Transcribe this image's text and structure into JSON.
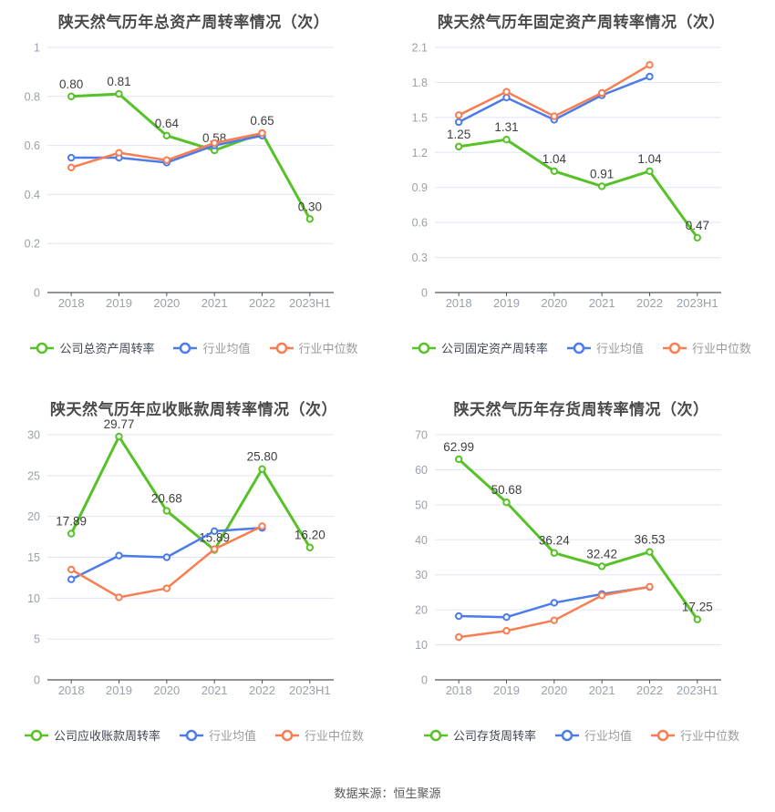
{
  "page": {
    "source_note": "数据来源：恒生聚源",
    "background": "#ffffff"
  },
  "style": {
    "grid_color": "#e0e5f2",
    "axis_color": "#555555",
    "tick_label_color": "#9aa1a9",
    "value_label_color": "#3f3f3f",
    "title_color": "#4a4a4a"
  },
  "chart_data": [
    {
      "type": "line",
      "title": "陕天然气历年总资产周转率情况（次）",
      "categories": [
        "2018",
        "2019",
        "2020",
        "2021",
        "2022",
        "2023H1"
      ],
      "ymax": 1,
      "ytick_labels": [
        "1",
        "0.8",
        "0.6",
        "0.4",
        "0.2",
        "0"
      ],
      "legend_position": "bottom",
      "grid": true,
      "series": [
        {
          "name": "公司总资产周转率",
          "color": "#56c228",
          "values": [
            0.8,
            0.81,
            0.64,
            0.58,
            0.65,
            0.3
          ],
          "point_labels": [
            "0.80",
            "0.81",
            "0.64",
            "0.58",
            "0.65",
            "0.30"
          ]
        },
        {
          "name": "行业均值",
          "color": "#4c7cea",
          "values": [
            0.55,
            0.55,
            0.53,
            0.6,
            0.64
          ]
        },
        {
          "name": "行业中位数",
          "color": "#fa7d50",
          "values": [
            0.51,
            0.57,
            0.54,
            0.61,
            0.65
          ]
        }
      ]
    },
    {
      "type": "line",
      "title": "陕天然气历年固定资产周转率情况（次）",
      "categories": [
        "2018",
        "2019",
        "2020",
        "2021",
        "2022",
        "2023H1"
      ],
      "ymax": 2.1,
      "ytick_labels": [
        "2.1",
        "1.8",
        "1.5",
        "1.2",
        "0.9",
        "0.6",
        "0.3",
        "0"
      ],
      "legend_position": "bottom",
      "grid": true,
      "series": [
        {
          "name": "公司固定资产周转率",
          "color": "#56c228",
          "values": [
            1.25,
            1.31,
            1.04,
            0.91,
            1.04,
            0.47
          ],
          "point_labels": [
            "1.25",
            "1.31",
            "1.04",
            "0.91",
            "1.04",
            "0.47"
          ]
        },
        {
          "name": "行业均值",
          "color": "#4c7cea",
          "values": [
            1.46,
            1.67,
            1.48,
            1.69,
            1.85
          ]
        },
        {
          "name": "行业中位数",
          "color": "#fa7d50",
          "values": [
            1.52,
            1.72,
            1.51,
            1.71,
            1.95
          ]
        }
      ]
    },
    {
      "type": "line",
      "title": "陕天然气历年应收账款周转率情况（次）",
      "categories": [
        "2018",
        "2019",
        "2020",
        "2021",
        "2022",
        "2023H1"
      ],
      "ymax": 30,
      "ytick_labels": [
        "30",
        "25",
        "20",
        "15",
        "10",
        "5",
        "0"
      ],
      "legend_position": "bottom",
      "grid": true,
      "series": [
        {
          "name": "公司应收账款周转率",
          "color": "#56c228",
          "values": [
            17.89,
            29.77,
            20.68,
            15.89,
            25.8,
            16.2
          ],
          "point_labels": [
            "17.89",
            "29.77",
            "20.68",
            "15.89",
            "25.80",
            "16.20"
          ]
        },
        {
          "name": "行业均值",
          "color": "#4c7cea",
          "values": [
            12.3,
            15.2,
            15.0,
            18.2,
            18.6
          ]
        },
        {
          "name": "行业中位数",
          "color": "#fa7d50",
          "values": [
            13.5,
            10.1,
            11.2,
            16.0,
            18.8
          ]
        }
      ]
    },
    {
      "type": "line",
      "title": "陕天然气历年存货周转率情况（次）",
      "categories": [
        "2018",
        "2019",
        "2020",
        "2021",
        "2022",
        "2023H1"
      ],
      "ymax": 70,
      "ytick_labels": [
        "70",
        "60",
        "50",
        "40",
        "30",
        "20",
        "10",
        "0"
      ],
      "legend_position": "bottom",
      "grid": true,
      "series": [
        {
          "name": "公司存货周转率",
          "color": "#56c228",
          "values": [
            62.99,
            50.68,
            36.24,
            32.42,
            36.53,
            17.25
          ],
          "point_labels": [
            "62.99",
            "50.68",
            "36.24",
            "32.42",
            "36.53",
            "17.25"
          ]
        },
        {
          "name": "行业均值",
          "color": "#4c7cea",
          "values": [
            18.2,
            17.9,
            22.0,
            24.5,
            26.5
          ]
        },
        {
          "name": "行业中位数",
          "color": "#fa7d50",
          "values": [
            12.2,
            14.0,
            17.0,
            24.1,
            26.6
          ]
        }
      ]
    }
  ]
}
